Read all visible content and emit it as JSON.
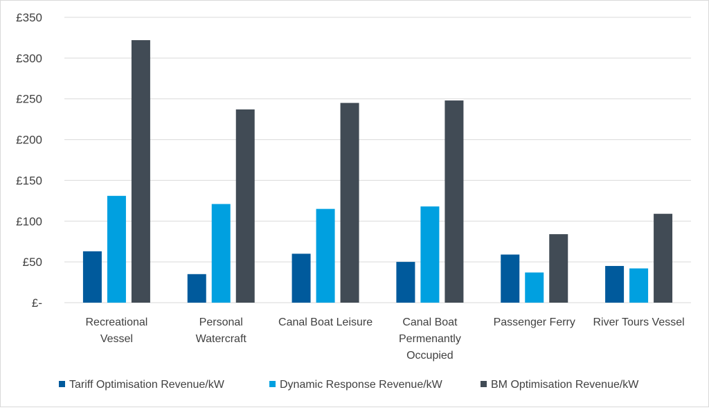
{
  "chart_data": {
    "type": "bar",
    "title": "",
    "xlabel": "",
    "ylabel": "",
    "ylim": [
      0,
      350
    ],
    "yticks": [
      "£-",
      "£50",
      "£100",
      "£150",
      "£200",
      "£250",
      "£300",
      "£350"
    ],
    "grid": true,
    "legend_position": "bottom",
    "categories": [
      "Recreational Vessel",
      "Personal Watercraft",
      "Canal Boat Leisure",
      "Canal Boat Permenantly Occupied",
      "Passenger Ferry",
      "River Tours Vessel"
    ],
    "category_lines": [
      [
        "Recreational",
        "Vessel"
      ],
      [
        "Personal",
        "Watercraft"
      ],
      [
        "Canal Boat Leisure"
      ],
      [
        "Canal Boat",
        "Permenantly",
        "Occupied"
      ],
      [
        "Passenger Ferry"
      ],
      [
        "River Tours Vessel"
      ]
    ],
    "series": [
      {
        "name": "Tariff Optimisation Revenue/kW",
        "color": "#005a9c",
        "values": [
          63,
          35,
          60,
          50,
          59,
          45
        ]
      },
      {
        "name": "Dynamic Response Revenue/kW",
        "color": "#00a0e0",
        "values": [
          131,
          121,
          115,
          118,
          37,
          42
        ]
      },
      {
        "name": "BM Optimisation Revenue/kW",
        "color": "#414b55",
        "values": [
          322,
          237,
          245,
          248,
          84,
          109
        ]
      }
    ]
  }
}
